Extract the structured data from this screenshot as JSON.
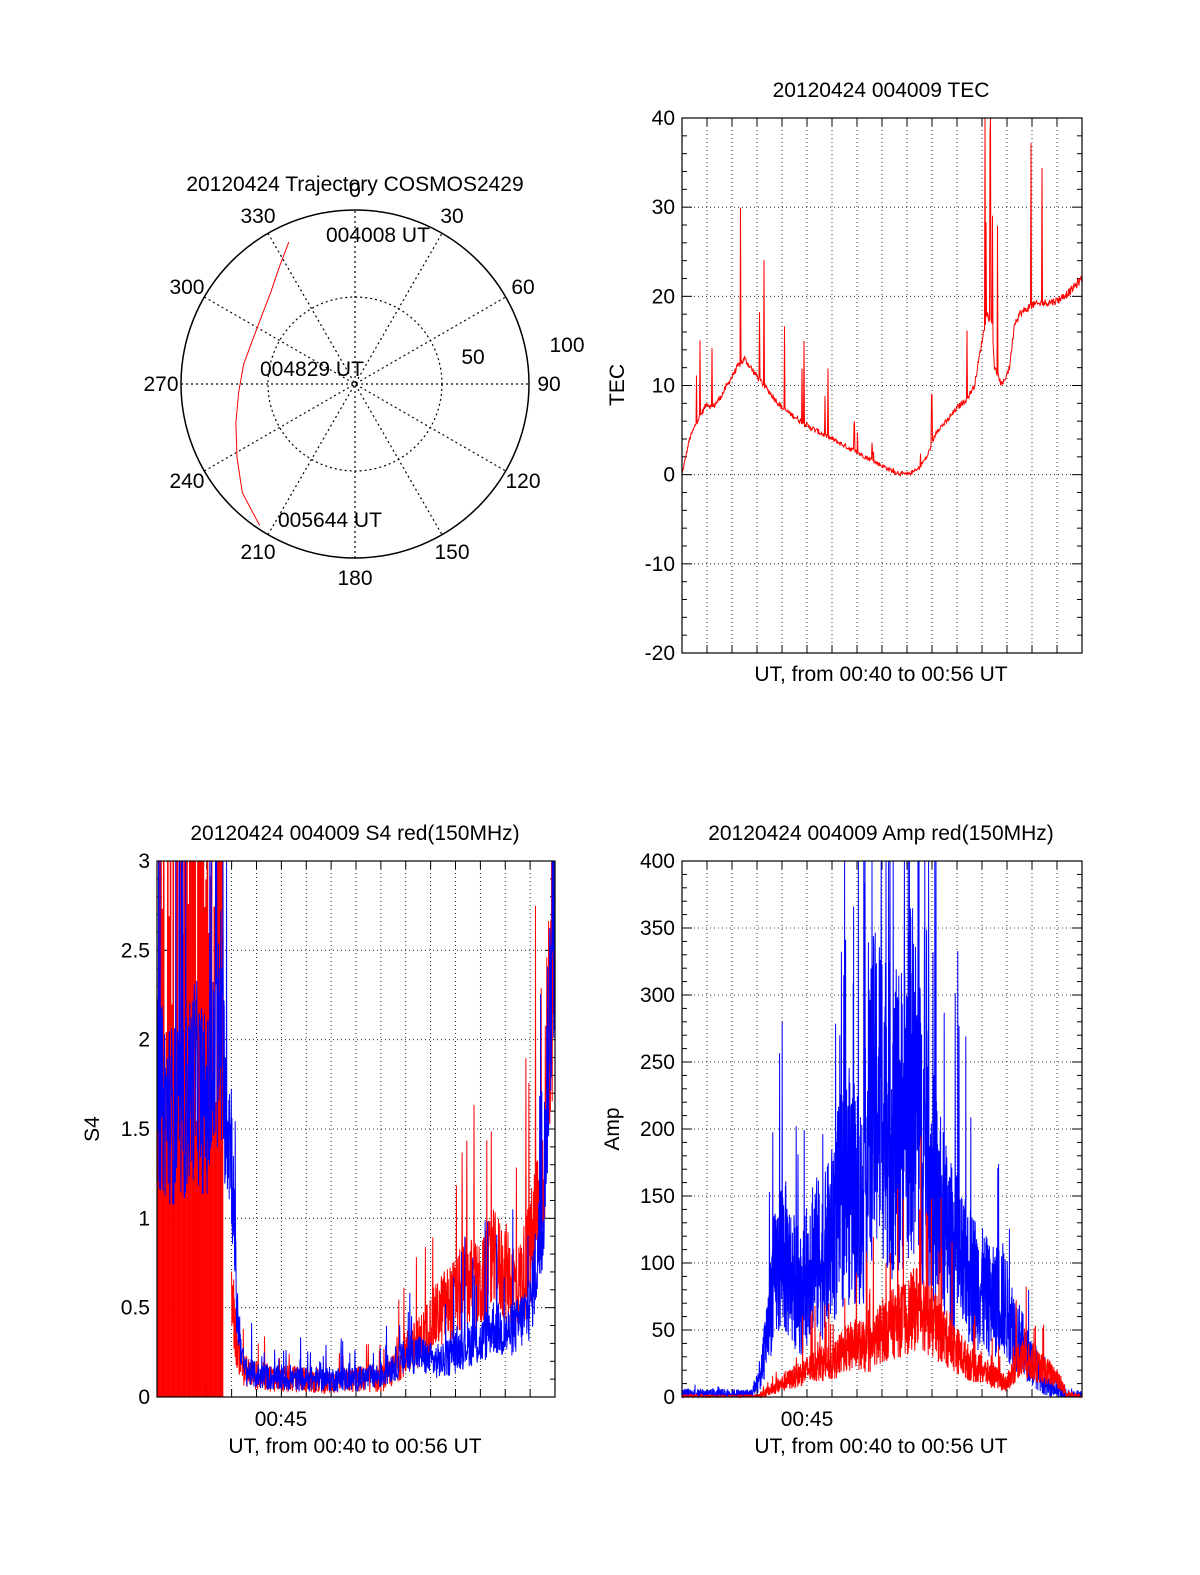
{
  "chart_data": [
    {
      "panel": "polar",
      "type": "scatter",
      "title": "20120424 Trajectory COSMOS2429",
      "azimuth_labels": [
        "0",
        "30",
        "60",
        "90",
        "120",
        "150",
        "180",
        "210",
        "240",
        "270",
        "300",
        "330"
      ],
      "radius_labels": [
        "50",
        "100"
      ],
      "time_labels": [
        "004008 UT",
        "004829 UT",
        "005644 UT"
      ],
      "trajectory": {
        "color": "#ff0000",
        "points": [
          [
            335,
            90
          ],
          [
            327,
            80
          ],
          [
            318,
            72
          ],
          [
            305,
            66
          ],
          [
            292,
            64
          ],
          [
            280,
            65
          ],
          [
            266,
            67
          ],
          [
            252,
            72
          ],
          [
            238,
            80
          ],
          [
            226,
            90
          ],
          [
            214,
            98
          ]
        ]
      }
    },
    {
      "panel": "tec",
      "type": "line",
      "title": "20120424 004009 TEC",
      "xlabel": "UT, from 00:40 to 00:56 UT",
      "ylabel": "TEC",
      "xlim": [
        0,
        16
      ],
      "ylim": [
        -20,
        40
      ],
      "yticks": [
        "-20",
        "-10",
        "0",
        "10",
        "20",
        "30",
        "40"
      ],
      "grid": true,
      "series": [
        {
          "color": "#ff0000",
          "x": [
            0,
            0.3,
            0.6,
            1.0,
            1.2,
            1.5,
            1.8,
            2.2,
            2.5,
            3.0,
            4.0,
            5.0,
            6.0,
            7.0,
            8.0,
            8.5,
            9.0,
            9.4,
            9.8,
            10.2,
            10.6,
            11.0,
            11.4,
            11.7,
            12.0,
            12.2,
            12.4,
            12.5,
            12.8,
            13.1,
            13.3,
            13.5,
            14.0,
            15.0,
            15.5,
            16.0
          ],
          "y": [
            0,
            4,
            6,
            8,
            7.5,
            8.5,
            10,
            12,
            13,
            11,
            7.5,
            5.5,
            4,
            2.5,
            1,
            0.3,
            0,
            0.5,
            2,
            5,
            6,
            7.5,
            8.5,
            10,
            15,
            18,
            17,
            12,
            10,
            12,
            17,
            18,
            19,
            19.5,
            20.5,
            22
          ]
        }
      ]
    },
    {
      "panel": "s4",
      "type": "line",
      "title": "20120424 004009 S4 red(150MHz)",
      "xlabel": "UT, from 00:40 to 00:56 UT",
      "ylabel": "S4",
      "xlim": [
        0,
        16
      ],
      "ylim": [
        0,
        3
      ],
      "yticks": [
        "0",
        "0.5",
        "1",
        "1.5",
        "2",
        "2.5",
        "3"
      ],
      "xticks": [
        {
          "x": 5,
          "label": "00:45"
        }
      ],
      "grid": true,
      "series": [
        {
          "color": "#ff0000",
          "x": [
            3.0,
            3.2,
            3.5,
            4.0,
            5.0,
            6.0,
            7.0,
            8.0,
            9.0,
            9.5,
            10.0,
            10.5,
            11.0,
            11.5,
            12.0,
            12.5,
            13.0,
            13.5,
            14.0,
            14.5,
            15.0,
            15.5,
            16.0
          ],
          "y": [
            0.6,
            0.3,
            0.15,
            0.12,
            0.1,
            0.1,
            0.08,
            0.1,
            0.1,
            0.15,
            0.25,
            0.3,
            0.4,
            0.5,
            0.55,
            0.65,
            0.6,
            0.75,
            0.7,
            0.6,
            0.8,
            1.2,
            3.0
          ]
        },
        {
          "color": "#0000ff",
          "x": [
            0,
            0.5,
            1.0,
            1.5,
            2.0,
            2.5,
            3.0,
            3.2,
            3.5,
            4.0,
            5.0,
            6.0,
            7.0,
            8.0,
            9.0,
            9.5,
            10.0,
            10.5,
            11.0,
            11.5,
            12.0,
            12.5,
            13.0,
            13.5,
            14.0,
            14.5,
            15.0,
            15.5,
            16.0
          ],
          "y": [
            1.7,
            1.6,
            1.55,
            1.8,
            1.6,
            2.0,
            1.4,
            0.5,
            0.15,
            0.12,
            0.1,
            0.1,
            0.1,
            0.1,
            0.12,
            0.18,
            0.22,
            0.25,
            0.2,
            0.2,
            0.25,
            0.3,
            0.3,
            0.4,
            0.35,
            0.4,
            0.5,
            1.0,
            3.0
          ]
        }
      ]
    },
    {
      "panel": "amp",
      "type": "line",
      "title": "20120424 004009 Amp red(150MHz)",
      "xlabel": "UT, from 00:40 to 00:56 UT",
      "ylabel": "Amp",
      "xlim": [
        0,
        16
      ],
      "ylim": [
        0,
        400
      ],
      "yticks": [
        "0",
        "50",
        "100",
        "150",
        "200",
        "250",
        "300",
        "350",
        "400"
      ],
      "xticks": [
        {
          "x": 5,
          "label": "00:45"
        }
      ],
      "grid": true,
      "series": [
        {
          "color": "#0000ff",
          "x": [
            0,
            2.0,
            2.8,
            3.2,
            3.6,
            4.0,
            4.4,
            4.8,
            5.2,
            5.6,
            6.0,
            6.4,
            6.8,
            7.2,
            7.6,
            8.0,
            8.4,
            8.8,
            9.2,
            9.6,
            10.0,
            10.4,
            10.8,
            11.2,
            11.6,
            12.0,
            12.4,
            12.8,
            13.2,
            13.6,
            14.0,
            14.5,
            15.0,
            15.4,
            16.0
          ],
          "y": [
            2,
            2,
            2,
            20,
            80,
            110,
            90,
            75,
            110,
            100,
            120,
            150,
            160,
            140,
            220,
            230,
            200,
            210,
            240,
            190,
            160,
            130,
            110,
            95,
            90,
            80,
            70,
            75,
            55,
            40,
            25,
            10,
            5,
            2,
            1
          ]
        },
        {
          "color": "#ff0000",
          "x": [
            0,
            3.0,
            3.5,
            4.0,
            4.5,
            5.0,
            5.5,
            6.0,
            6.5,
            7.0,
            7.5,
            8.0,
            8.5,
            9.0,
            9.5,
            10.0,
            10.5,
            11.0,
            11.5,
            12.0,
            12.5,
            13.0,
            13.5,
            14.0,
            14.5,
            15.0,
            15.4,
            16.0
          ],
          "y": [
            0,
            0,
            5,
            10,
            15,
            20,
            25,
            25,
            35,
            40,
            35,
            50,
            55,
            60,
            70,
            55,
            45,
            35,
            25,
            20,
            15,
            10,
            30,
            25,
            20,
            15,
            2,
            0
          ]
        }
      ]
    }
  ]
}
